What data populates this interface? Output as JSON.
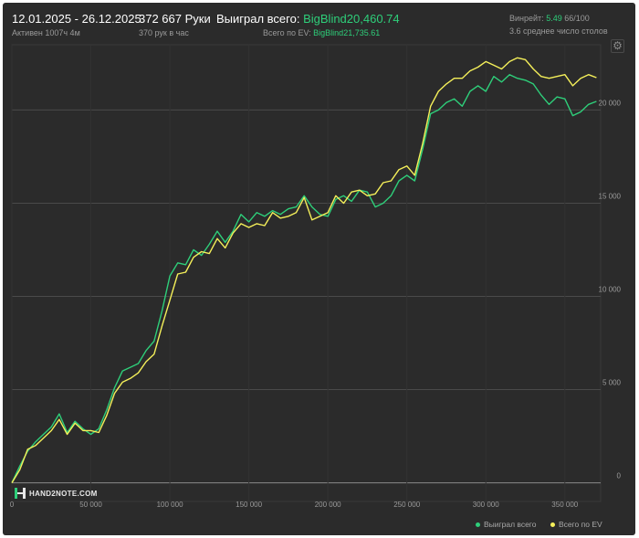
{
  "header": {
    "date_range": "12.01.2025 - 26.12.2025",
    "active_time": "Активен 1007ч 4м",
    "hands": "372 667 Руки",
    "hands_per_hour": "370 рук в час",
    "won_total_label": "Выиграл всего:",
    "won_total_value": "BigBlind20,460.74",
    "ev_total_label": "Всего по EV:",
    "ev_total_value": "BigBlind21,735.61",
    "winrate_label": "Винрейт:",
    "winrate_value": "5.49",
    "winrate_suffix": "66/100",
    "tables_avg": "3.6 среднее число столов",
    "settings_icon": "gear-icon"
  },
  "logo": {
    "text": "HAND2NOTE.COM",
    "icon": "h2n-logo-icon"
  },
  "colors": {
    "background": "#2b2b2b",
    "won": "#2ecf7a",
    "ev": "#f5f05a",
    "accent": "#2ecf7a",
    "grid": "#4a4a4a"
  },
  "chart_data": {
    "type": "line",
    "xlim": [
      0,
      372667
    ],
    "ylim": [
      -1000,
      23500
    ],
    "y_ticks": [
      0,
      5000,
      10000,
      15000,
      20000
    ],
    "y_tick_labels": [
      "0",
      "5 000",
      "10 000",
      "15 000",
      "20 000"
    ],
    "x_ticks": [
      0,
      50000,
      100000,
      150000,
      200000,
      250000,
      300000,
      350000
    ],
    "x_tick_labels": [
      "0",
      "50 000",
      "100 000",
      "150 000",
      "200 000",
      "250 000",
      "300 000",
      "350 000"
    ],
    "grid": true,
    "legend_position": "bottom-right",
    "x": [
      0,
      5000,
      10000,
      15000,
      20000,
      25000,
      30000,
      35000,
      40000,
      45000,
      50000,
      55000,
      60000,
      65000,
      70000,
      75000,
      80000,
      85000,
      90000,
      95000,
      100000,
      105000,
      110000,
      115000,
      120000,
      125000,
      130000,
      135000,
      140000,
      145000,
      150000,
      155000,
      160000,
      165000,
      170000,
      175000,
      180000,
      185000,
      190000,
      195000,
      200000,
      205000,
      210000,
      215000,
      220000,
      225000,
      230000,
      235000,
      240000,
      245000,
      250000,
      255000,
      260000,
      265000,
      270000,
      275000,
      280000,
      285000,
      290000,
      295000,
      300000,
      305000,
      310000,
      315000,
      320000,
      325000,
      330000,
      335000,
      340000,
      345000,
      350000,
      355000,
      360000,
      365000,
      370000
    ],
    "series": [
      {
        "name": "Выиграл всего",
        "color": "#2ecf7a",
        "values": [
          0,
          900,
          1700,
          2200,
          2600,
          3000,
          3700,
          2700,
          3300,
          2900,
          2600,
          2900,
          3900,
          5100,
          6000,
          6200,
          6400,
          7100,
          7600,
          9200,
          11100,
          11800,
          11700,
          12500,
          12200,
          12800,
          13500,
          12900,
          13500,
          14400,
          14000,
          14500,
          14300,
          14600,
          14400,
          14700,
          14800,
          15400,
          14800,
          14400,
          14300,
          15200,
          15400,
          15100,
          15700,
          15600,
          14800,
          15000,
          15400,
          16200,
          16500,
          16200,
          17900,
          19800,
          20000,
          20400,
          20600,
          20200,
          21000,
          21300,
          21000,
          21800,
          21500,
          21900,
          21700,
          21600,
          21400,
          20800,
          20300,
          20700,
          20600,
          19700,
          19900,
          20300,
          20460
        ]
      },
      {
        "name": "Всего по EV",
        "color": "#f5f05a",
        "values": [
          0,
          700,
          1800,
          2000,
          2400,
          2800,
          3400,
          2600,
          3200,
          2800,
          2800,
          2700,
          3600,
          4800,
          5400,
          5600,
          5900,
          6500,
          6900,
          8400,
          9800,
          11200,
          11300,
          12100,
          12400,
          12300,
          13100,
          12600,
          13400,
          13900,
          13700,
          13900,
          13800,
          14500,
          14200,
          14300,
          14500,
          15300,
          14100,
          14300,
          14500,
          15400,
          15000,
          15600,
          15700,
          15400,
          15500,
          16100,
          16200,
          16800,
          17000,
          16500,
          18200,
          20200,
          21000,
          21400,
          21700,
          21700,
          22100,
          22300,
          22600,
          22400,
          22200,
          22600,
          22800,
          22700,
          22200,
          21800,
          21700,
          21800,
          21900,
          21300,
          21700,
          21900,
          21736
        ]
      }
    ]
  }
}
